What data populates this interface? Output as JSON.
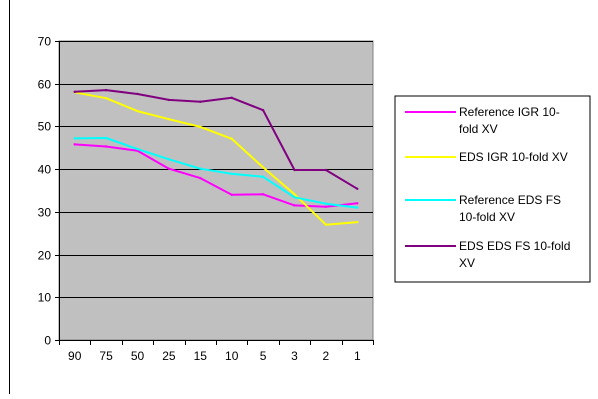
{
  "chart_data": {
    "type": "line",
    "title": "",
    "xlabel": "",
    "ylabel": "",
    "categories": [
      "90",
      "75",
      "50",
      "25",
      "15",
      "10",
      "5",
      "3",
      "2",
      "1"
    ],
    "ylim": [
      0,
      70
    ],
    "yticks": [
      0,
      10,
      20,
      30,
      40,
      50,
      60,
      70
    ],
    "grid": "horizontal",
    "legend_position": "right",
    "plot_background": "#c0c0c0",
    "series": [
      {
        "name": "Reference IGR 10-fold XV",
        "name_lines": [
          "Reference IGR 10-",
          "fold XV"
        ],
        "color": "#ff00ff",
        "values": [
          45.8,
          45.3,
          44.3,
          40.1,
          37.9,
          34.0,
          34.1,
          31.5,
          31.2,
          32.0
        ]
      },
      {
        "name": "EDS IGR 10-fold XV",
        "name_lines": [
          "EDS IGR 10-fold XV"
        ],
        "color": "#ffff00",
        "values": [
          58.0,
          56.6,
          53.6,
          51.7,
          49.9,
          47.1,
          40.4,
          34.1,
          27.0,
          27.6
        ]
      },
      {
        "name": "Reference EDS FS 10-fold XV",
        "name_lines": [
          "Reference EDS FS",
          "10-fold XV"
        ],
        "color": "#00ffff",
        "values": [
          47.2,
          47.3,
          44.7,
          42.3,
          40.1,
          38.9,
          38.2,
          33.4,
          31.9,
          31.0
        ]
      },
      {
        "name": "EDS EDS FS 10-fold XV",
        "name_lines": [
          "EDS EDS FS 10-fold",
          "XV"
        ],
        "color": "#800080",
        "values": [
          58.1,
          58.5,
          57.6,
          56.2,
          55.8,
          56.7,
          53.8,
          39.8,
          39.8,
          35.4
        ]
      }
    ]
  }
}
